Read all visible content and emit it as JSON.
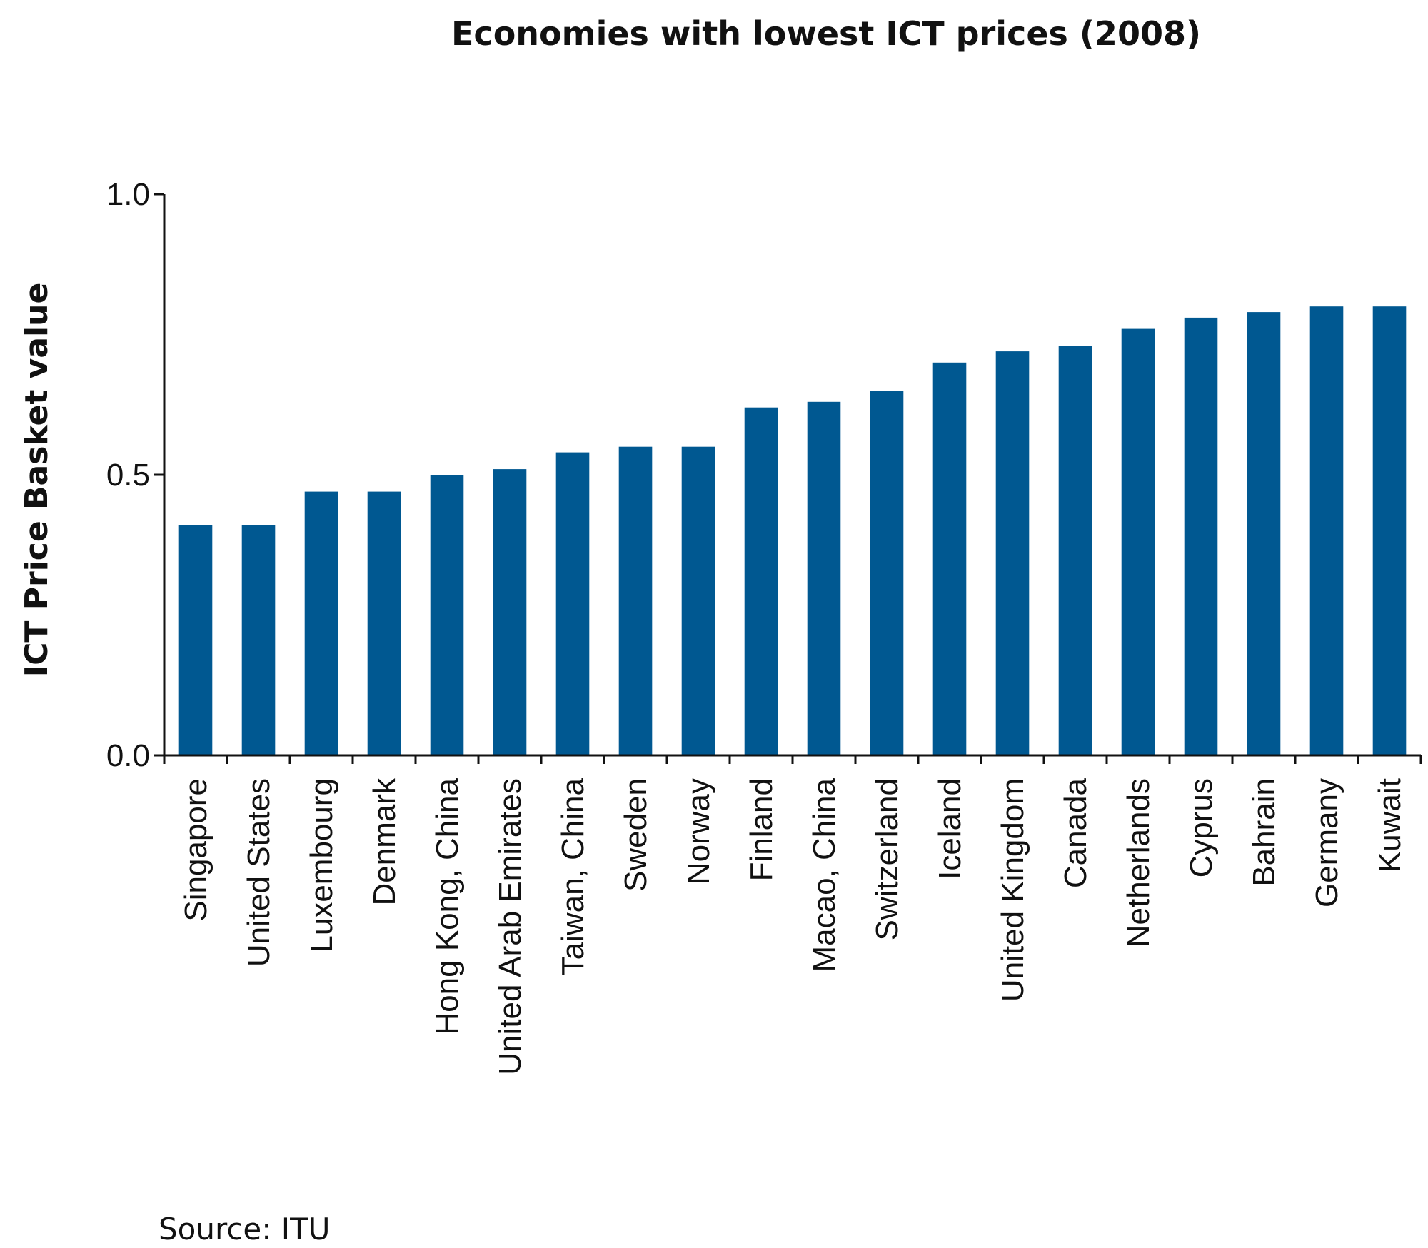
{
  "chart_data": {
    "type": "bar",
    "title": "Economies with lowest ICT prices (2008)",
    "xlabel": "",
    "ylabel": "ICT Price Basket value",
    "ylim": [
      0,
      1
    ],
    "yticks": [
      "0.0",
      "0.5",
      "1.0"
    ],
    "grid": false,
    "colors": {
      "bar": "#005891",
      "axis": "#111111"
    },
    "categories": [
      "Singapore",
      "United States",
      "Luxembourg",
      "Denmark",
      "Hong Kong, China",
      "United Arab Emirates",
      "Taiwan, China",
      "Sweden",
      "Norway",
      "Finland",
      "Macao, China",
      "Switzerland",
      "Iceland",
      "United Kingdom",
      "Canada",
      "Netherlands",
      "Cyprus",
      "Bahrain",
      "Germany",
      "Kuwait"
    ],
    "values": [
      0.41,
      0.41,
      0.47,
      0.47,
      0.5,
      0.51,
      0.54,
      0.55,
      0.55,
      0.62,
      0.63,
      0.65,
      0.7,
      0.72,
      0.73,
      0.76,
      0.78,
      0.79,
      0.8,
      0.8
    ]
  },
  "footer": {
    "source": "Source: ITU"
  }
}
